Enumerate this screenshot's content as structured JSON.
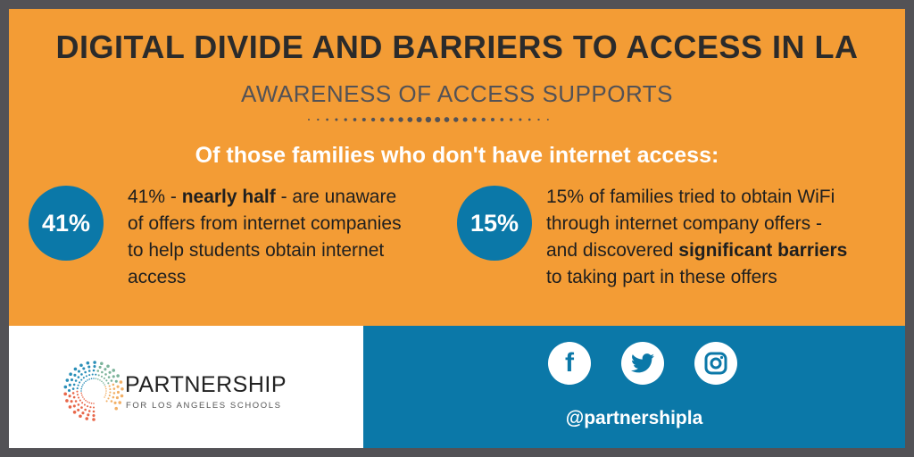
{
  "header": {
    "title": "DIGITAL DIVIDE AND BARRIERS TO ACCESS IN LA",
    "subtitle": "AWARENESS OF ACCESS SUPPORTS",
    "lead": "Of those families who don't have internet access:"
  },
  "stats": [
    {
      "badge": "41%",
      "pre": "41% - ",
      "bold": "nearly half",
      "post": " - are unaware of offers from internet companies to help students obtain internet access"
    },
    {
      "badge": "15%",
      "pre": "15% of families tried to obtain WiFi through internet company offers - and discovered ",
      "bold": "significant barriers",
      "post": " to taking part in these offers"
    }
  ],
  "footer": {
    "logo_name": "PARTNERSHIP",
    "logo_tagline": "FOR LOS ANGELES SCHOOLS",
    "handle": "@partnershipla",
    "social": [
      "facebook-icon",
      "twitter-icon",
      "instagram-icon"
    ]
  },
  "colors": {
    "orange": "#f39c35",
    "blue": "#0b78a8",
    "frame": "#535256"
  }
}
